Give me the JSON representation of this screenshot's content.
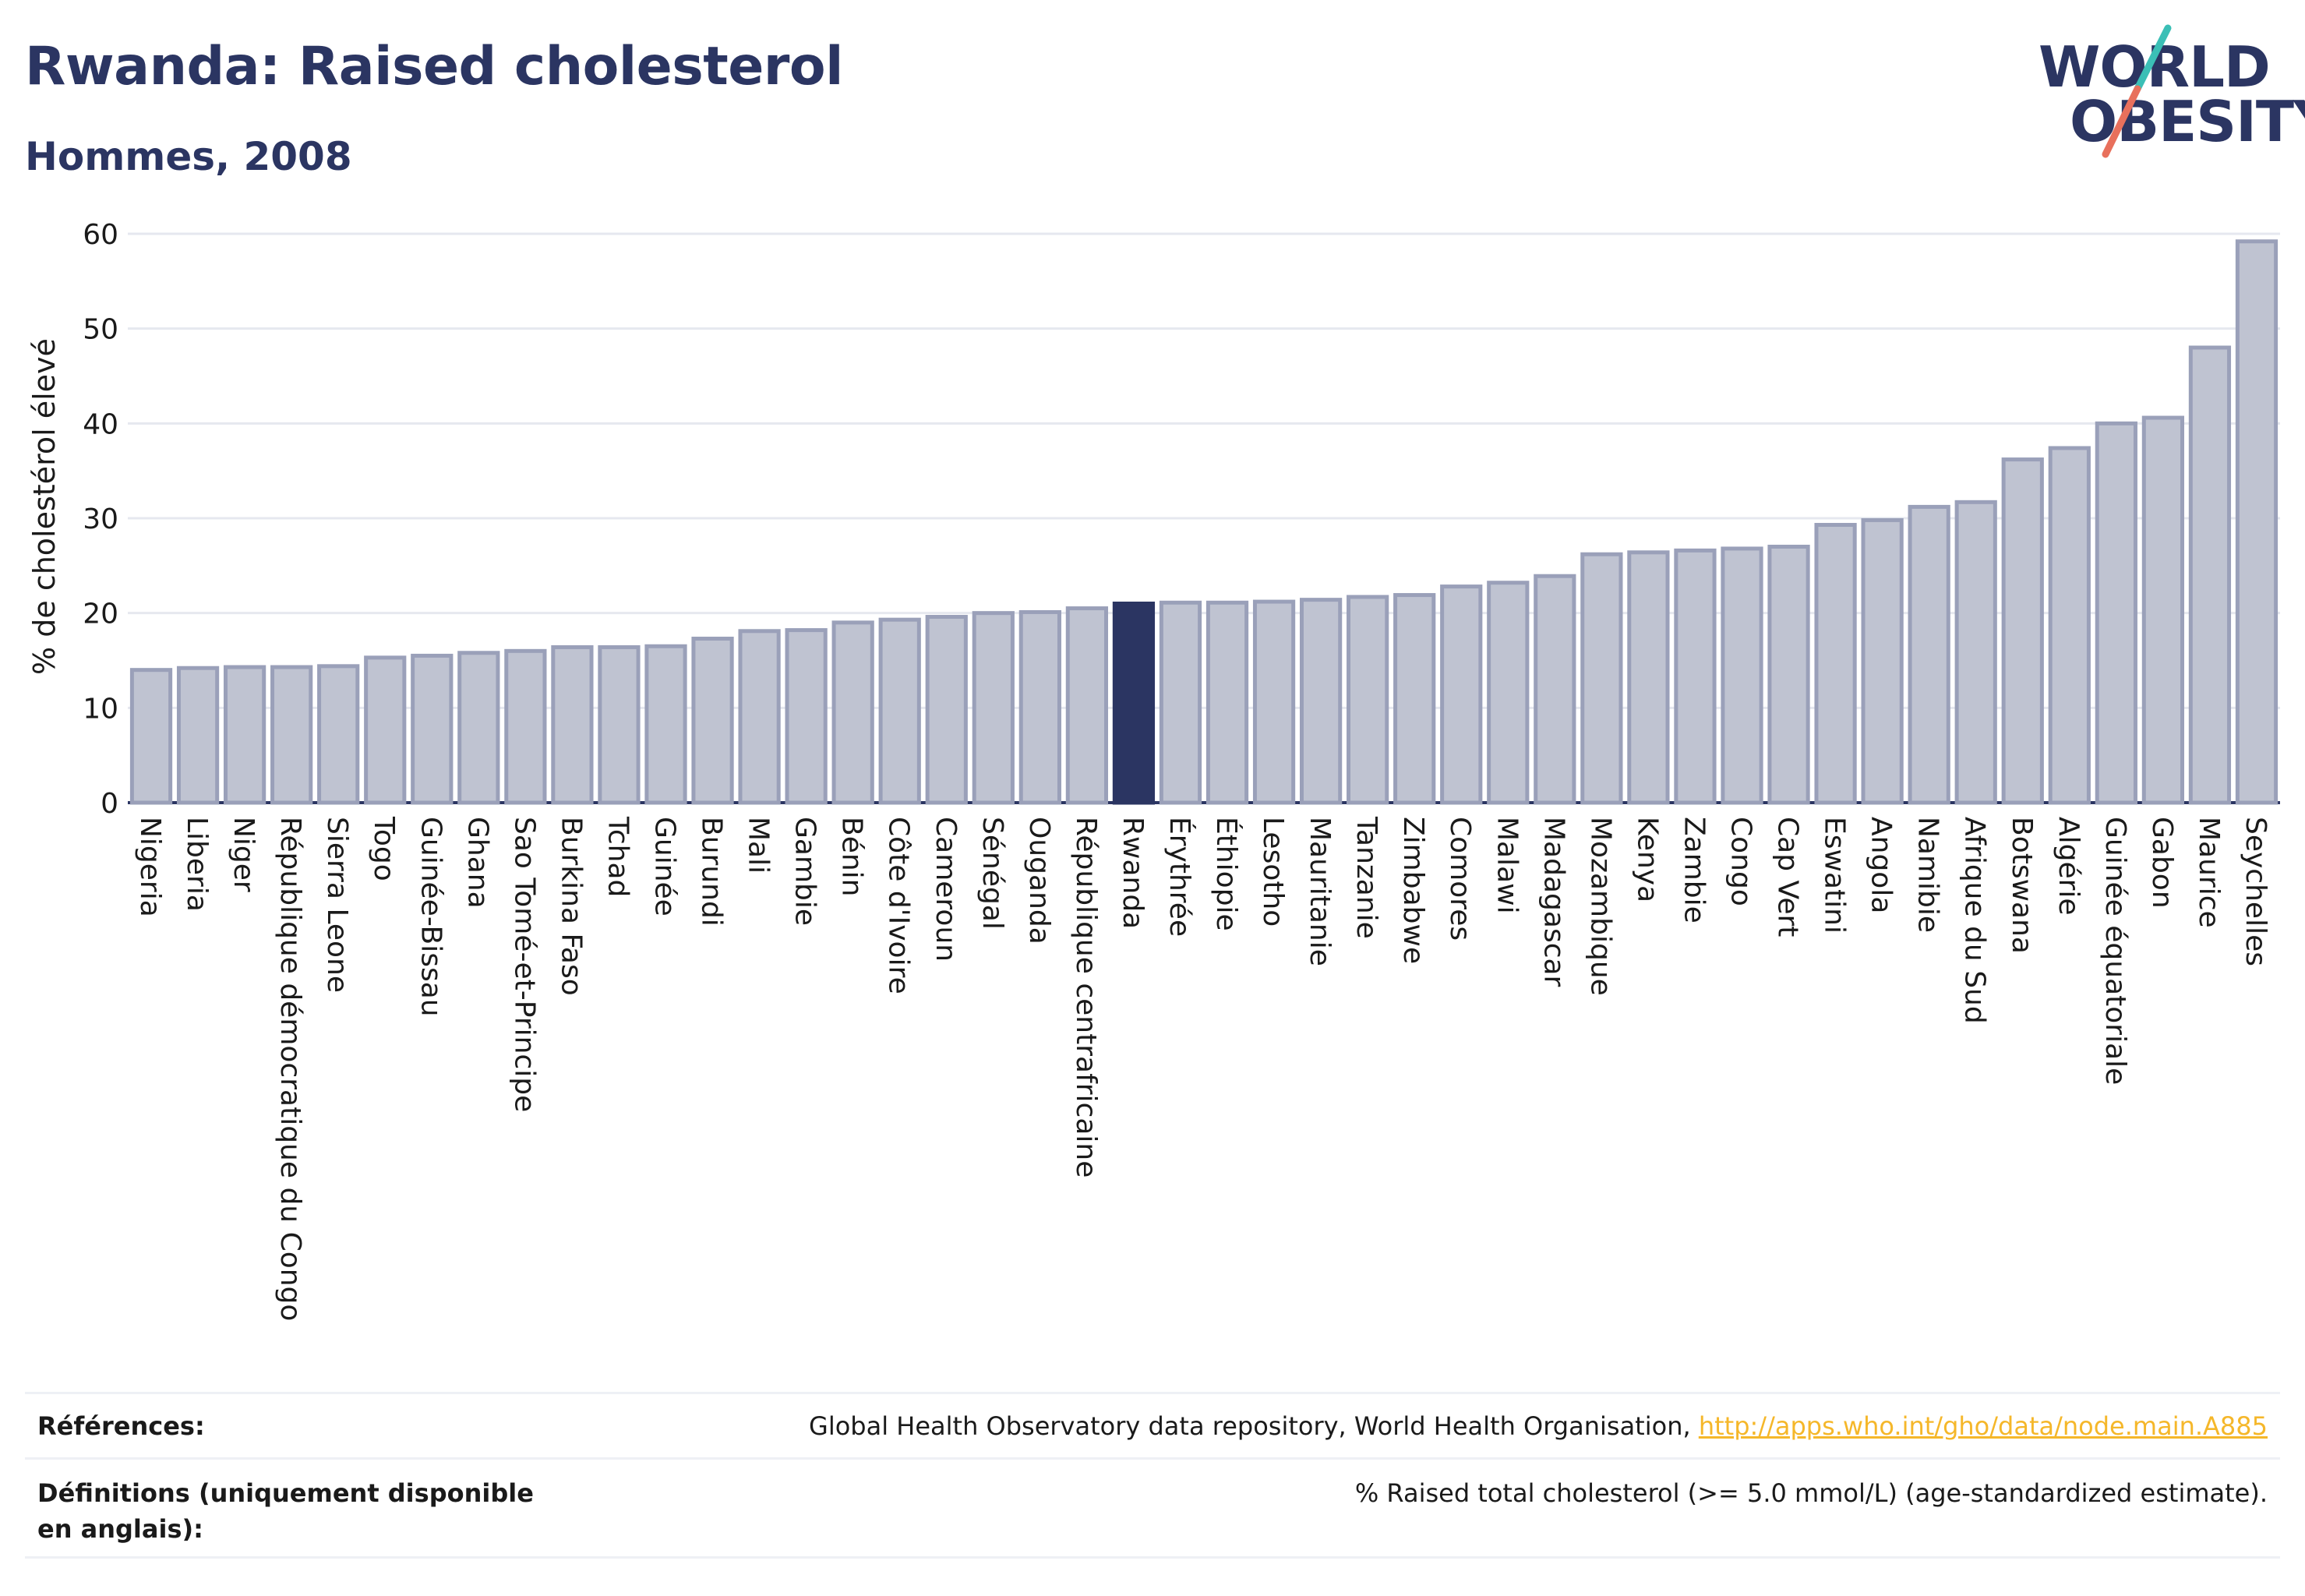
{
  "header": {
    "title": "Rwanda: Raised cholesterol",
    "subtitle": "Hommes, 2008"
  },
  "logo": {
    "line1": "WORLD",
    "line2": "OBESITY"
  },
  "colors": {
    "bar_fill": "#bfc3d1",
    "bar_stroke": "#9aa0b9",
    "highlight": "#2b3562",
    "grid": "#e6e8ef",
    "axis": "#2b3562",
    "logo_slash_top": "#3bbfb6",
    "logo_slash_bottom": "#e8705c"
  },
  "chart_data": {
    "type": "bar",
    "ylabel": "% de cholestérol élevé",
    "ylim": [
      0,
      60
    ],
    "yticks": [
      0,
      10,
      20,
      30,
      40,
      50,
      60
    ],
    "grid": true,
    "highlight_category": "Rwanda",
    "categories": [
      "Nigeria",
      "Liberia",
      "Niger",
      "République démocratique du Congo",
      "Sierra Leone",
      "Togo",
      "Guinée-Bissau",
      "Ghana",
      "Sao Tomé-et-Principe",
      "Burkina Faso",
      "Tchad",
      "Guinée",
      "Burundi",
      "Mali",
      "Gambie",
      "Bénin",
      "Côte d'Ivoire",
      "Cameroun",
      "Sénégal",
      "Ouganda",
      "République centrafricaine",
      "Rwanda",
      "Érythrée",
      "Éthiopie",
      "Lesotho",
      "Mauritanie",
      "Tanzanie",
      "Zimbabwe",
      "Comores",
      "Malawi",
      "Madagascar",
      "Mozambique",
      "Kenya",
      "Zambie",
      "Congo",
      "Cap Vert",
      "Eswatini",
      "Angola",
      "Namibie",
      "Afrique du Sud",
      "Botswana",
      "Algérie",
      "Guinée équatoriale",
      "Gabon",
      "Maurice",
      "Seychelles"
    ],
    "values": [
      14.0,
      14.2,
      14.3,
      14.3,
      14.4,
      15.3,
      15.5,
      15.8,
      16.0,
      16.4,
      16.4,
      16.5,
      17.3,
      18.1,
      18.2,
      19.0,
      19.3,
      19.6,
      20.0,
      20.1,
      20.5,
      21.0,
      21.1,
      21.1,
      21.2,
      21.4,
      21.7,
      21.9,
      22.8,
      23.2,
      23.9,
      26.2,
      26.4,
      26.6,
      26.8,
      27.0,
      29.3,
      29.8,
      31.2,
      31.7,
      36.2,
      37.4,
      40.0,
      40.6,
      48.0,
      59.2
    ]
  },
  "references": {
    "label": "Références:",
    "text": "Global Health Observatory data repository, World Health Organisation, ",
    "link": "http://apps.who.int/gho/data/node.main.A885"
  },
  "definitions": {
    "label": "Définitions (uniquement disponible en anglais):",
    "text": "% Raised total cholesterol (>= 5.0 mmol/L) (age-standardized estimate)."
  }
}
